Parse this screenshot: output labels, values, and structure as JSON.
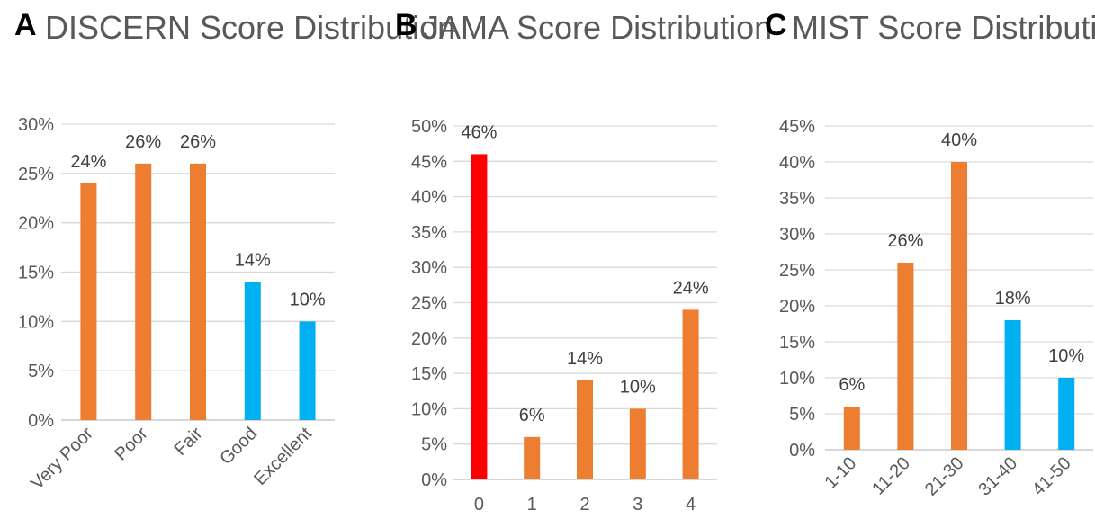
{
  "chart_data": [
    {
      "panel_label": "A",
      "type": "bar",
      "title": "DISCERN Score Distribution",
      "categories": [
        "Very Poor",
        "Poor",
        "Fair",
        "Good",
        "Excellent"
      ],
      "values": [
        24,
        26,
        26,
        14,
        10
      ],
      "data_labels": [
        "24%",
        "26%",
        "26%",
        "14%",
        "10%"
      ],
      "bar_colors": [
        "#ED7D31",
        "#ED7D31",
        "#ED7D31",
        "#00B0F0",
        "#00B0F0"
      ],
      "ylim": [
        0,
        30
      ],
      "ytick_step": 5,
      "ytick_labels": [
        "0%",
        "5%",
        "10%",
        "15%",
        "20%",
        "25%",
        "30%"
      ],
      "rotated_xlabels": true,
      "grid": true
    },
    {
      "panel_label": "B",
      "type": "bar",
      "title": "JAMA Score Distribution",
      "categories": [
        "0",
        "1",
        "2",
        "3",
        "4"
      ],
      "values": [
        46,
        6,
        14,
        10,
        24
      ],
      "data_labels": [
        "46%",
        "6%",
        "14%",
        "10%",
        "24%"
      ],
      "bar_colors": [
        "#FF0000",
        "#ED7D31",
        "#ED7D31",
        "#ED7D31",
        "#ED7D31"
      ],
      "ylim": [
        0,
        50
      ],
      "ytick_step": 5,
      "ytick_labels": [
        "0%",
        "5%",
        "10%",
        "15%",
        "20%",
        "25%",
        "30%",
        "35%",
        "40%",
        "45%",
        "50%"
      ],
      "rotated_xlabels": false,
      "grid": true
    },
    {
      "panel_label": "C",
      "type": "bar",
      "title": "MIST Score Distribution",
      "categories": [
        "1-10",
        "11-20",
        "21-30",
        "31-40",
        "41-50"
      ],
      "values": [
        6,
        26,
        40,
        18,
        10
      ],
      "data_labels": [
        "6%",
        "26%",
        "40%",
        "18%",
        "10%"
      ],
      "bar_colors": [
        "#ED7D31",
        "#ED7D31",
        "#ED7D31",
        "#00B0F0",
        "#00B0F0"
      ],
      "ylim": [
        0,
        45
      ],
      "ytick_step": 5,
      "ytick_labels": [
        "0%",
        "5%",
        "10%",
        "15%",
        "20%",
        "25%",
        "30%",
        "35%",
        "40%",
        "45%"
      ],
      "rotated_xlabels": true,
      "grid": true
    }
  ]
}
